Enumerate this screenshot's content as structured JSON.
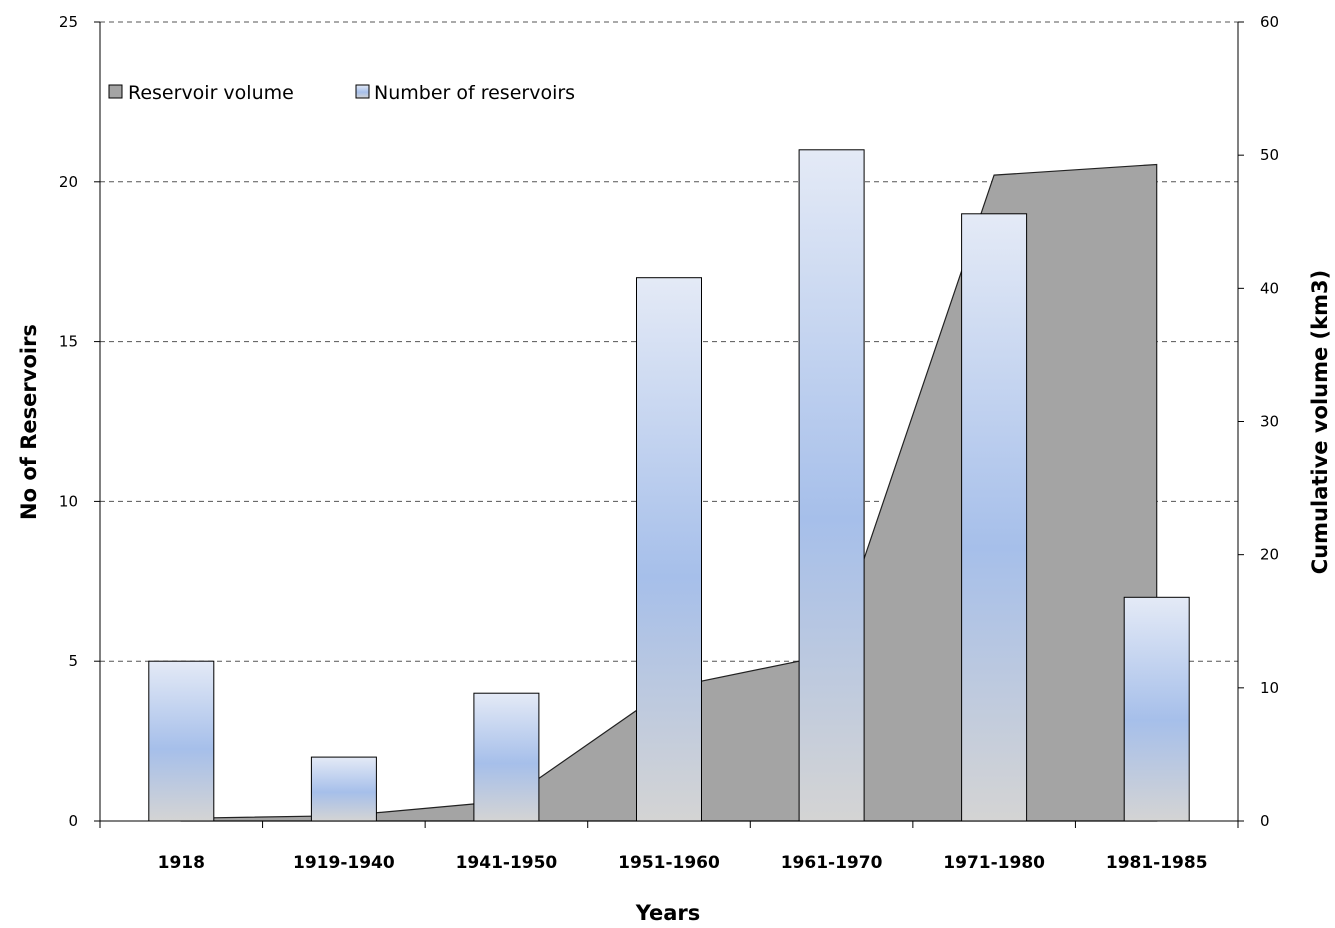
{
  "chart_data": {
    "type": "bar",
    "categories": [
      "1918",
      "1919-1940",
      "1941-1950",
      "1951-1960",
      "1961-1970",
      "1971-1980",
      "1981-1985"
    ],
    "series": [
      {
        "name": "Number of reservoirs",
        "type": "bar",
        "axis": "left",
        "values": [
          5,
          2,
          4,
          17,
          21,
          19,
          7
        ]
      },
      {
        "name": "Reservoir volume",
        "type": "area",
        "axis": "right",
        "x": [
          0.5,
          1.5,
          2.5,
          3.5,
          4.5,
          5.5,
          6.5
        ],
        "values": [
          0.2,
          0.4,
          1.5,
          10,
          12.5,
          48.5,
          49.3
        ]
      }
    ],
    "xlabel": "Years",
    "ylabel": "No of Reservoirs",
    "y2label": "Cumulative volume (km3)",
    "ylim": [
      0,
      25
    ],
    "y2lim": [
      0,
      60
    ],
    "yticks": [
      0,
      5,
      10,
      15,
      20,
      25
    ],
    "y2ticks": [
      0,
      10,
      20,
      30,
      40,
      50,
      60
    ],
    "grid": true,
    "legend": "top-left",
    "colors": {
      "bar_top": "#e4eaf6",
      "bar_mid": "#a6bfea",
      "bar_bottom": "#d4d4d4",
      "area_fill": "#a4a4a4",
      "grid": "#555555"
    }
  }
}
